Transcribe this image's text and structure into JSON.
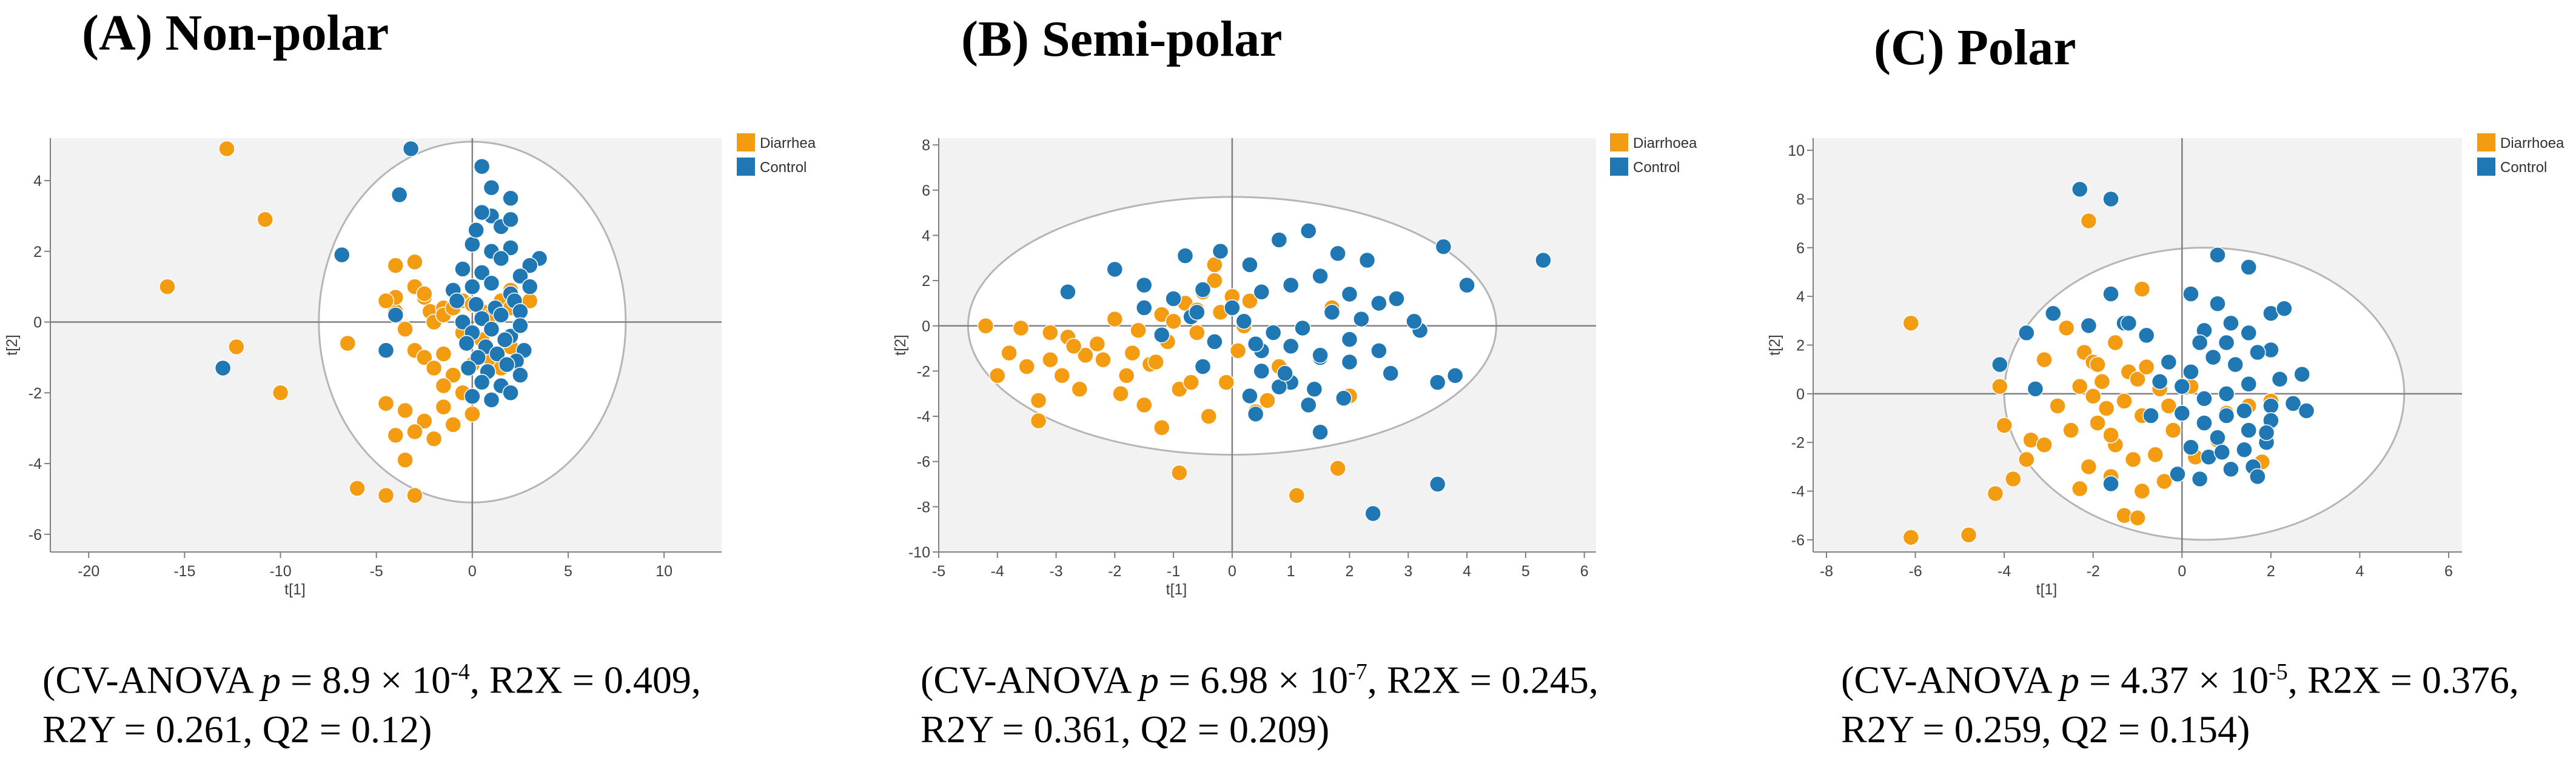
{
  "colors": {
    "diarrhea": "#F39C12",
    "control": "#1F77B4",
    "plot_bg": "#F2F2F2",
    "ellipse": "#B5B5B5",
    "axis": "#808080"
  },
  "chart_data": [
    {
      "type": "scatter",
      "title": "(A) Non-polar",
      "xlabel": "t[1]",
      "ylabel": "t[2]",
      "xlim": [
        -22,
        13
      ],
      "ylim": [
        -6.5,
        5.2
      ],
      "xticks": [
        -20,
        -15,
        -10,
        -5,
        0,
        5,
        10
      ],
      "yticks": [
        -6,
        -4,
        -2,
        0,
        2,
        4
      ],
      "ellipse": {
        "cx": 0,
        "cy": 0,
        "rx": 8,
        "ry": 5.1
      },
      "legend": [
        "Diarrhea",
        "Control"
      ],
      "stats": {
        "prefix": "(CV-ANOVA ",
        "p_label": "p",
        "p_value": " = 8.9 × 10",
        "p_exp": "-4",
        "line1_rest": ", R2X = 0.409,",
        "line2": "R2Y = 0.261, Q2 = 0.12)"
      },
      "series": [
        {
          "name": "Diarrhea",
          "x": [
            -12.8,
            -10.8,
            -15.9,
            -12.3,
            -10,
            -6,
            -4.5,
            -3.5,
            -6.5,
            -4,
            -3,
            -2.5,
            -2.2,
            -1.5,
            -4,
            -3.5,
            -2,
            -1.5,
            -1,
            -0.5,
            0,
            0.5,
            1,
            1.5,
            2,
            2.5,
            3,
            -3,
            -2.5,
            -2,
            -1,
            0,
            1,
            2,
            -4.5,
            -3.5,
            -2.5,
            -1.5,
            -0.5,
            0.5,
            1.5,
            -3,
            -2,
            -1,
            0,
            1,
            -4,
            -3,
            -1.5,
            0.5,
            2,
            -1.5,
            -0.5,
            -4,
            -2.5,
            -4.5,
            -3
          ],
          "y": [
            4.9,
            2.9,
            1.0,
            -0.7,
            -2.0,
            -4.7,
            -4.9,
            -3.9,
            -0.6,
            1.6,
            1.0,
            0.7,
            0.3,
            0.4,
            0.3,
            -0.2,
            0,
            0.2,
            0.4,
            0.6,
            0.5,
            0.3,
            0.2,
            0.6,
            0.4,
            0.5,
            0.6,
            -0.8,
            -1.0,
            -1.3,
            -1.5,
            -1.2,
            -1.1,
            -0.7,
            -2.3,
            -2.5,
            -2.8,
            -2.4,
            -2.0,
            -1.7,
            -1.3,
            -3.1,
            -3.3,
            -2.9,
            -2.6,
            -2.2,
            -3.2,
            -4.9,
            -0.9,
            -0.5,
            0.9,
            -1.8,
            -0.3,
            0.7,
            0.8,
            0.6,
            1.7
          ]
        },
        {
          "name": "Control",
          "x": [
            -13,
            -6.8,
            -3.8,
            -3.2,
            -4,
            -4.5,
            0.5,
            2,
            3.5,
            1,
            1.5,
            2,
            0,
            1,
            2,
            3,
            -0.5,
            0.5,
            1.5,
            2.5,
            -1,
            0,
            1,
            2,
            3,
            -0.8,
            0.2,
            1.2,
            2.2,
            -0.5,
            0.5,
            1.5,
            2.5,
            0,
            1,
            2,
            -0.3,
            0.7,
            1.7,
            2.7,
            0.3,
            1.3,
            2.3,
            -0.2,
            0.8,
            1.8,
            0.5,
            1.5,
            2.5,
            0,
            1,
            2,
            0.2,
            0.5,
            1,
            2.5
          ],
          "y": [
            -1.3,
            1.9,
            3.6,
            4.9,
            0.2,
            -0.8,
            4.4,
            3.5,
            1.8,
            3.0,
            2.7,
            2.9,
            2.2,
            2.0,
            2.1,
            1.6,
            1.5,
            1.4,
            1.8,
            1.3,
            0.9,
            1.0,
            1.1,
            0.8,
            1.0,
            0.6,
            0.5,
            0.4,
            0.6,
            0.0,
            0.1,
            0.2,
            0.3,
            -0.3,
            -0.2,
            -0.4,
            -0.6,
            -0.7,
            -0.5,
            -0.8,
            -1.0,
            -0.9,
            -1.1,
            -1.3,
            -1.4,
            -1.2,
            -1.7,
            -1.8,
            -1.5,
            -2.1,
            -2.2,
            -2.0,
            2.6,
            3.1,
            3.8,
            -0.1
          ]
        }
      ]
    },
    {
      "type": "scatter",
      "title": "(B) Semi-polar",
      "xlabel": "t[1]",
      "ylabel": "t[2]",
      "xlim": [
        -5,
        6.2
      ],
      "ylim": [
        -10,
        8.3
      ],
      "xticks": [
        -5,
        -4,
        -3,
        -2,
        -1,
        0,
        1,
        2,
        3,
        4,
        5,
        6
      ],
      "yticks": [
        -10,
        -8,
        -6,
        -4,
        -2,
        0,
        2,
        4,
        6,
        8
      ],
      "ellipse": {
        "cx": 0,
        "cy": 0,
        "rx": 4.5,
        "ry": 5.7
      },
      "legend": [
        "Diarrhoea",
        "Control"
      ],
      "stats": {
        "prefix": "(CV-ANOVA ",
        "p_label": "p",
        "p_value": " = 6.98 × 10",
        "p_exp": "-7",
        "line1_rest": ", R2X = 0.245,",
        "line2": "R2Y = 0.361, Q2 = 0.209)"
      },
      "series": [
        {
          "name": "Diarrhoea",
          "x": [
            -4.2,
            -3.8,
            -3.5,
            -4,
            -3.3,
            -2.8,
            -2.5,
            -2.2,
            -2.6,
            -1.8,
            -1.5,
            -2,
            -1.2,
            -0.8,
            -1,
            -0.5,
            0,
            -0.3,
            0.2,
            -1.6,
            -2.3,
            -1.1,
            -0.6,
            -0.2,
            0.3,
            0.8,
            -0.9,
            -1.4,
            -3.1,
            -3.6,
            -2.9,
            -0.1,
            0.6,
            -1.2,
            -1.9,
            -0.4,
            0.4,
            -0.7,
            -3.3,
            -2.7,
            -1.7,
            -1.3,
            0.1,
            1.1,
            1.8,
            2,
            -0.9,
            -3.1,
            1.7,
            -0.3,
            -0.6
          ],
          "y": [
            0,
            -1.2,
            -1.8,
            -2.2,
            -3.3,
            -0.5,
            -1.3,
            -1.5,
            -2.8,
            -2.2,
            -3.5,
            0.3,
            0.5,
            1,
            0.2,
            1.5,
            1.3,
            2.7,
            0,
            -0.2,
            -0.8,
            -0.7,
            -0.3,
            0.6,
            1.1,
            -1.8,
            -2.8,
            -1.7,
            -0.3,
            -0.1,
            -2.2,
            -2.5,
            -3.3,
            -4.5,
            -3,
            -4,
            -3.8,
            -2.5,
            -4.2,
            -0.9,
            -1.2,
            -1.6,
            -1.1,
            -7.5,
            -6.3,
            -3.1,
            -6.5,
            -1.5,
            0.8,
            2,
            0.7
          ]
        },
        {
          "name": "Control",
          "x": [
            5.3,
            3.6,
            4,
            3.5,
            3.2,
            2.7,
            2.8,
            3.1,
            2.5,
            2,
            1.5,
            1,
            0.5,
            -0.5,
            -1.5,
            -2,
            -2.8,
            -0.8,
            -0.2,
            0.3,
            0.8,
            1.3,
            1.8,
            2.3,
            -1,
            -0.5,
            0,
            0.5,
            1,
            1.5,
            2,
            2.5,
            -1.5,
            -0.7,
            0.2,
            0.7,
            1.2,
            1.7,
            2.2,
            -1.2,
            -0.3,
            0.5,
            1,
            1.5,
            2,
            0.3,
            0.8,
            1.3,
            0.4,
            0.9,
            1.4,
            1.9,
            1.5,
            2.4,
            3.5,
            3.8,
            0.4,
            -0.6
          ],
          "y": [
            2.9,
            3.5,
            1.8,
            -2.5,
            -0.2,
            -2.1,
            1.2,
            0.2,
            -1.1,
            -0.6,
            -1.4,
            -2.5,
            -2,
            -1.8,
            1.8,
            2.5,
            1.5,
            3.1,
            3.3,
            2.7,
            3.8,
            4.2,
            3.2,
            2.9,
            1.2,
            1.6,
            0.8,
            1.5,
            1.8,
            2.2,
            1.4,
            1,
            0.8,
            0.4,
            0.2,
            -0.3,
            -0.1,
            0.6,
            0.3,
            -0.4,
            -0.7,
            -1.1,
            -0.9,
            -1.3,
            -1.6,
            -3.1,
            -2.7,
            -3.5,
            -3.9,
            -2.1,
            -2.8,
            -3.2,
            -4.7,
            -8.3,
            -7,
            -2.2,
            -0.8,
            0.6
          ]
        }
      ]
    },
    {
      "type": "scatter",
      "title": "(C) Polar",
      "xlabel": "t[1]",
      "ylabel": "t[2]",
      "xlim": [
        -8.3,
        6.3
      ],
      "ylim": [
        -6.5,
        10.5
      ],
      "xticks": [
        -8,
        -6,
        -4,
        -2,
        0,
        2,
        4,
        6
      ],
      "yticks": [
        -6,
        -4,
        -2,
        0,
        2,
        4,
        6,
        8,
        10
      ],
      "ellipse": {
        "cx": 0.5,
        "cy": 0,
        "rx": 4.5,
        "ry": 6
      },
      "legend": [
        "Diarrhoea",
        "Control"
      ],
      "stats": {
        "prefix": "(CV-ANOVA ",
        "p_label": "p",
        "p_value": " = 4.37 × 10",
        "p_exp": "-5",
        "line1_rest": ", R2X = 0.376,",
        "line2": "R2Y = 0.259, Q2 = 0.154)"
      },
      "series": [
        {
          "name": "Diarrhoea",
          "x": [
            -6.1,
            -6.1,
            -4.8,
            -4.2,
            -3.8,
            -3.5,
            -4,
            -4.1,
            -3.4,
            -2.8,
            -3.1,
            -2.6,
            -2.2,
            -2,
            -1.5,
            -1.8,
            -1.2,
            -1,
            -0.8,
            -0.5,
            -2.3,
            -1.7,
            -1.3,
            -0.9,
            -0.3,
            0.2,
            -2.5,
            -1.9,
            -1.5,
            -1.1,
            -0.6,
            0.5,
            1,
            1.5,
            2,
            -2.1,
            -1.6,
            -0.9,
            -0.4,
            0.3,
            0.8,
            -2.3,
            -1.3,
            -1,
            -3.1,
            -2,
            -0.2,
            -2.1,
            1.8,
            -0.9,
            -1.6,
            -1.9
          ],
          "y": [
            2.9,
            -5.9,
            -5.8,
            -4.1,
            -3.5,
            -2.7,
            -1.3,
            0.3,
            -1.9,
            -0.5,
            1.4,
            2.7,
            1.7,
            1.3,
            2.1,
            0.5,
            0.9,
            0.6,
            1.1,
            0.2,
            0.3,
            -0.6,
            -0.3,
            -0.9,
            -0.5,
            0.3,
            -1.5,
            -1.2,
            -2.1,
            -2.7,
            -2.5,
            -0.2,
            -0.8,
            -0.5,
            -0.3,
            -3,
            -3.4,
            -4,
            -3.6,
            -2.6,
            -1.9,
            -3.9,
            -5,
            -5.1,
            -2.1,
            -0.1,
            -1.5,
            7.1,
            -2.8,
            4.3,
            -1.7,
            1.2
          ]
        },
        {
          "name": "Control",
          "x": [
            -2.3,
            -1.6,
            -4.1,
            -3.3,
            -2.9,
            -1.6,
            -1.3,
            -0.8,
            0.2,
            0.8,
            1.5,
            2,
            2.3,
            0.5,
            1,
            1.5,
            2,
            -0.3,
            0.2,
            0.7,
            1.2,
            1.7,
            2.2,
            2.7,
            -0.5,
            0,
            0.5,
            1,
            1.5,
            2,
            2.5,
            0,
            0.5,
            1,
            1.5,
            2,
            0.2,
            0.8,
            1.4,
            1.9,
            0.6,
            1.1,
            1.6,
            -0.1,
            0.4,
            0.9,
            1.4,
            1.9,
            2.8,
            -2.1,
            -1.2,
            -1.6,
            -3.5,
            0.8,
            -0.7,
            0.4,
            1.1,
            1.7
          ],
          "y": [
            8.4,
            8,
            1.2,
            0.2,
            3.3,
            4.1,
            2.9,
            2.4,
            4.1,
            5.7,
            5.2,
            3.3,
            3.5,
            2.6,
            2.1,
            2.5,
            1.8,
            1.3,
            0.9,
            1.5,
            1.2,
            1.7,
            0.6,
            0.8,
            0.5,
            0.3,
            -0.2,
            0,
            0.4,
            -0.5,
            -0.4,
            -0.8,
            -1.2,
            -0.9,
            -1.5,
            -1.1,
            -2.2,
            -1.8,
            -2.3,
            -2,
            -2.6,
            -3.1,
            -3,
            -3.3,
            -3.5,
            -2.4,
            -0.7,
            -1.6,
            -0.7,
            2.8,
            2.9,
            -3.7,
            2.5,
            3.7,
            -0.9,
            2.1,
            2.9,
            -3.4
          ]
        }
      ]
    }
  ]
}
